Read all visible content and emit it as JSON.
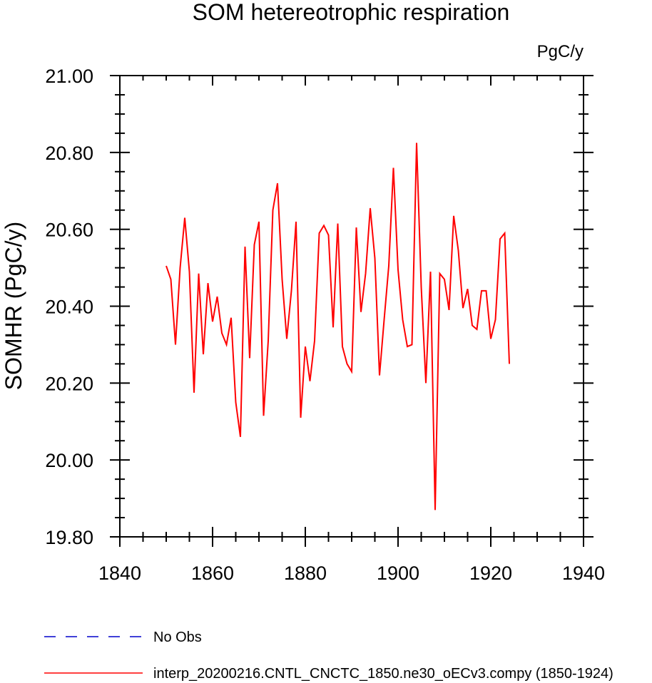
{
  "chart_data": {
    "type": "line",
    "title": "SOM hetereotrophic respiration",
    "units": "PgC/y",
    "ylabel": "SOMHR  (PgC/y)",
    "xlabel": "",
    "xlim": [
      1840,
      1940
    ],
    "ylim": [
      19.8,
      21.0
    ],
    "xticks": [
      1840,
      1860,
      1880,
      1900,
      1920,
      1940
    ],
    "xtick_labels": [
      "1840",
      "1860",
      "1880",
      "1900",
      "1920",
      "1940"
    ],
    "yticks": [
      19.8,
      20.0,
      20.2,
      20.4,
      20.6,
      20.8,
      21.0
    ],
    "ytick_labels": [
      "19.80",
      "20.00",
      "20.20",
      "20.40",
      "20.60",
      "20.80",
      "21.00"
    ],
    "grid": false,
    "legend_position": "bottom-left",
    "series": [
      {
        "name": "interp_20200216.CNTL_CNCTC_1850.ne30_oECv3.compy (1850-1924)",
        "color": "#ff0000",
        "style": "solid",
        "x": [
          1850,
          1851,
          1852,
          1853,
          1854,
          1855,
          1856,
          1857,
          1858,
          1859,
          1860,
          1861,
          1862,
          1863,
          1864,
          1865,
          1866,
          1867,
          1868,
          1869,
          1870,
          1871,
          1872,
          1873,
          1874,
          1875,
          1876,
          1877,
          1878,
          1879,
          1880,
          1881,
          1882,
          1883,
          1884,
          1885,
          1886,
          1887,
          1888,
          1889,
          1890,
          1891,
          1892,
          1893,
          1894,
          1895,
          1896,
          1897,
          1898,
          1899,
          1900,
          1901,
          1902,
          1903,
          1904,
          1905,
          1906,
          1907,
          1908,
          1909,
          1910,
          1911,
          1912,
          1913,
          1914,
          1915,
          1916,
          1917,
          1918,
          1919,
          1920,
          1921,
          1922,
          1923,
          1924
        ],
        "y": [
          20.505,
          20.47,
          20.3,
          20.5,
          20.63,
          20.49,
          20.175,
          20.485,
          20.275,
          20.46,
          20.36,
          20.425,
          20.33,
          20.3,
          20.37,
          20.15,
          20.06,
          20.555,
          20.265,
          20.56,
          20.62,
          20.115,
          20.31,
          20.65,
          20.72,
          20.47,
          20.315,
          20.44,
          20.62,
          20.11,
          20.295,
          20.205,
          20.31,
          20.59,
          20.61,
          20.585,
          20.345,
          20.615,
          20.295,
          20.25,
          20.23,
          20.605,
          20.385,
          20.485,
          20.655,
          20.525,
          20.22,
          20.365,
          20.505,
          20.76,
          20.495,
          20.365,
          20.295,
          20.3,
          20.825,
          20.45,
          20.2,
          20.49,
          19.87,
          20.485,
          20.47,
          20.39,
          20.635,
          20.545,
          20.395,
          20.445,
          20.35,
          20.34,
          20.44,
          20.44,
          20.315,
          20.365,
          20.575,
          20.59,
          20.25
        ]
      }
    ],
    "legend": [
      {
        "label": "No Obs",
        "color": "#0000cc",
        "style": "dashed"
      },
      {
        "label": "interp_20200216.CNTL_CNCTC_1850.ne30_oECv3.compy (1850-1924)",
        "color": "#ff0000",
        "style": "solid"
      }
    ]
  }
}
